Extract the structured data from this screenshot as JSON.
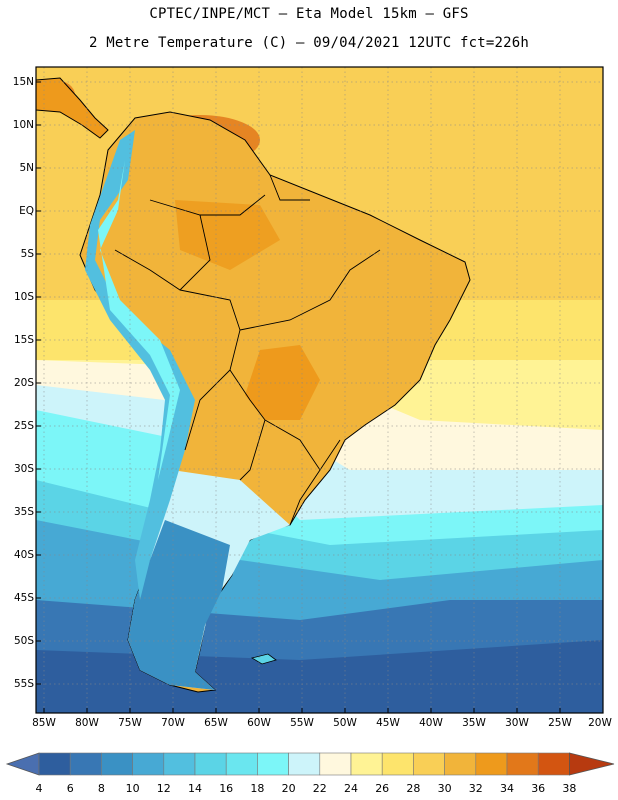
{
  "title_line1": "CPTEC/INPE/MCT –  Eta Model 15km – GFS",
  "title_line2": "2 Metre Temperature (C) – 09/04/2021 12UTC fct=226h",
  "lat_labels": [
    "15N",
    "10N",
    "5N",
    "EQ",
    "5S",
    "10S",
    "15S",
    "20S",
    "25S",
    "30S",
    "35S",
    "40S",
    "45S",
    "50S",
    "55S"
  ],
  "lon_labels": [
    "85W",
    "80W",
    "75W",
    "70W",
    "65W",
    "60W",
    "55W",
    "50W",
    "45W",
    "40W",
    "35W",
    "30W",
    "25W",
    "20W"
  ],
  "colorbar": {
    "labels": [
      "4",
      "6",
      "8",
      "10",
      "12",
      "14",
      "16",
      "18",
      "20",
      "22",
      "24",
      "26",
      "28",
      "30",
      "32",
      "34",
      "36",
      "38"
    ],
    "low_color": "#4a6fb0",
    "high_color": "#b73a10",
    "colors": [
      "#2e5e9e",
      "#3877b4",
      "#3a91c4",
      "#47a9d4",
      "#52bfdf",
      "#5bd4e6",
      "#6ae6ef",
      "#7cf6f8",
      "#cdf4fa",
      "#fff8de",
      "#fff395",
      "#fde46c",
      "#f9cf56",
      "#f1b43a",
      "#ee9a1c",
      "#e2781a",
      "#d35511",
      "#bd3b0c"
    ]
  }
}
